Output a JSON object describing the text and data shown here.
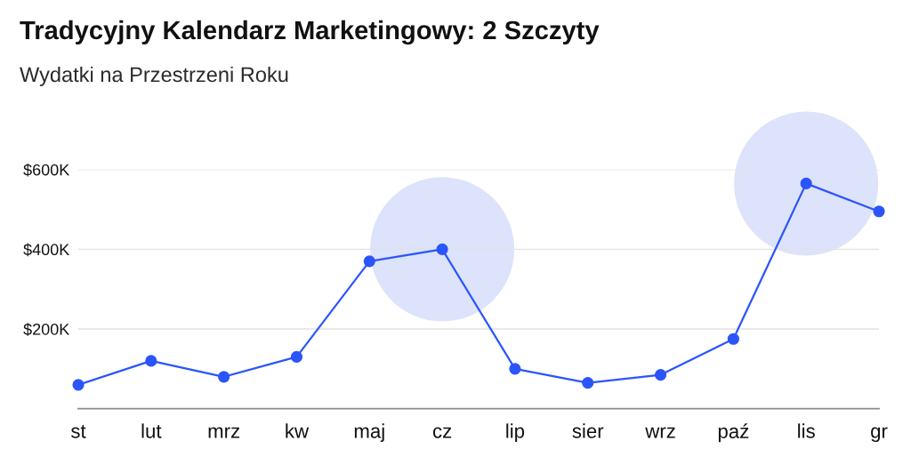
{
  "chart_data": {
    "type": "line",
    "title": "Tradycyjny Kalendarz Marketingowy: 2 Szczyty",
    "subtitle": "Wydatki na Przestrzeni Roku",
    "categories": [
      "st",
      "lut",
      "mrz",
      "kw",
      "maj",
      "cz",
      "lip",
      "sier",
      "wrz",
      "paź",
      "lis",
      "gr"
    ],
    "series": [
      {
        "color": "#2b55fb",
        "values": [
          60000,
          120000,
          80000,
          130000,
          370000,
          400000,
          100000,
          65000,
          85000,
          175000,
          565000,
          495000
        ]
      }
    ],
    "ylim": [
      0,
      600000
    ],
    "yticks": [
      {
        "value": 200000,
        "label": "$200K"
      },
      {
        "value": 400000,
        "label": "$400K"
      },
      {
        "value": 600000,
        "label": "$600K"
      }
    ],
    "grid": "y",
    "marker": "circle",
    "line_style": "solid"
  }
}
